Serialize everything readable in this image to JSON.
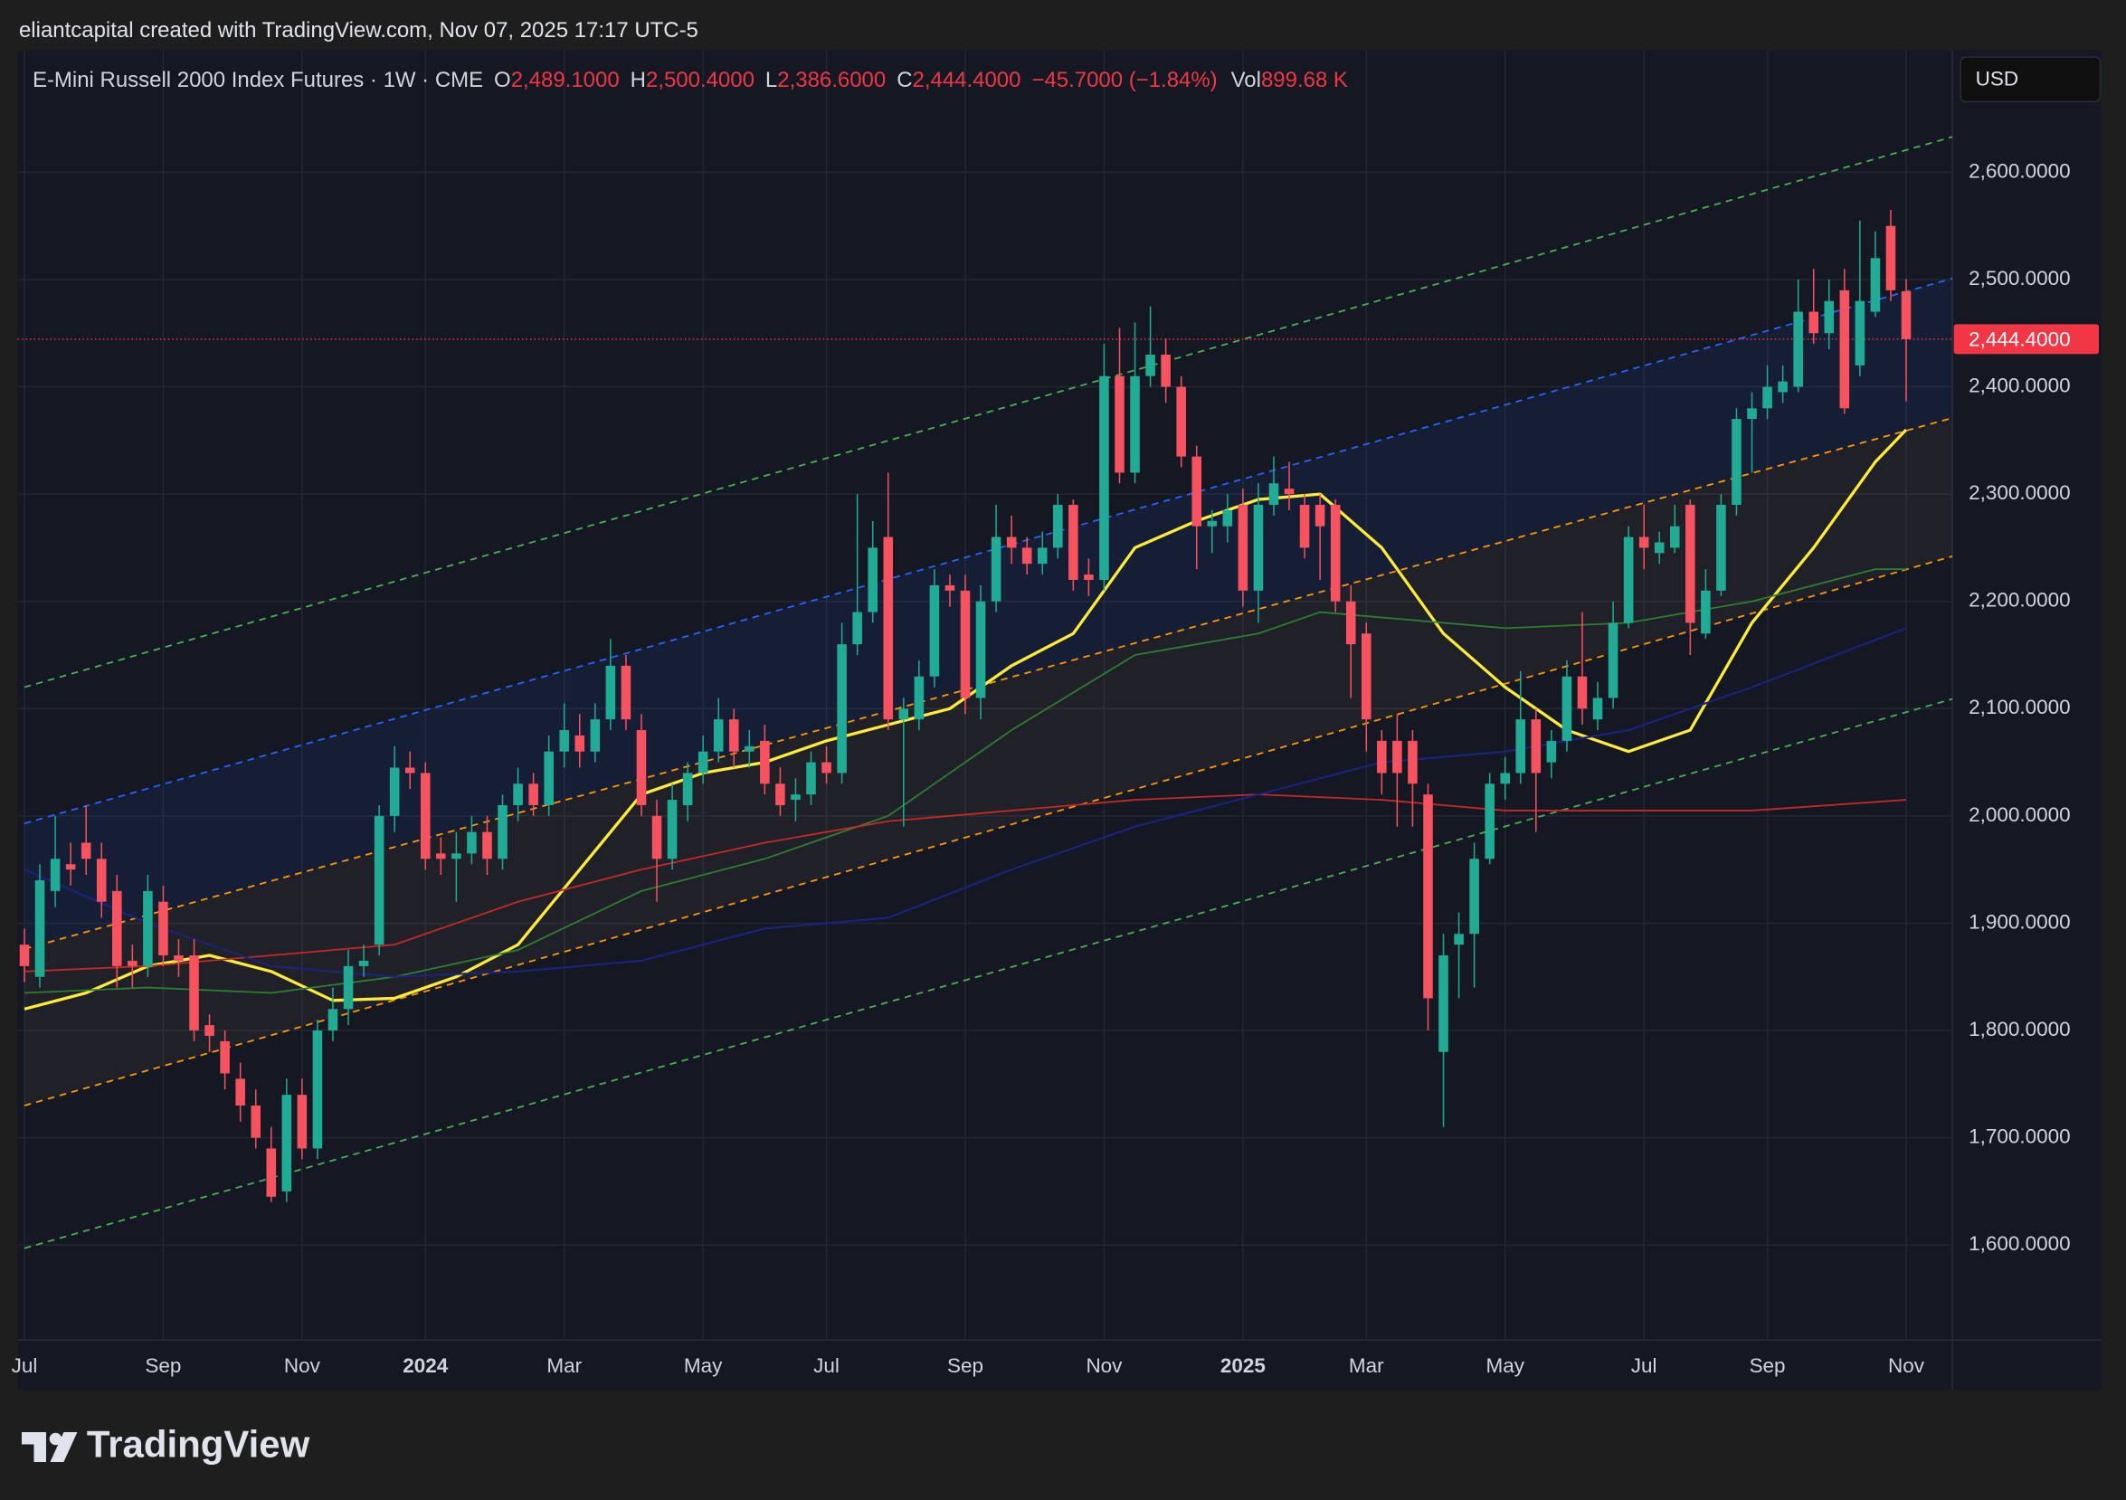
{
  "header": {
    "created": "eliantcapital created with TradingView.com, Nov 07, 2025 17:17 UTC-5"
  },
  "footer": {
    "brand": "TradingView"
  },
  "chart_data": {
    "type": "candlestick",
    "symbol": "E-Mini Russell 2000 Index Futures · 1W · CME",
    "ohlc_labels": [
      {
        "key": "O",
        "label": "2,489.1000"
      },
      {
        "key": "H",
        "label": "2,500.4000"
      },
      {
        "key": "L",
        "label": "2,386.6000"
      },
      {
        "key": "C",
        "label": "2,444.4000"
      }
    ],
    "change": "−45.7000 (−1.84%)",
    "volume": {
      "key": "Vol",
      "label": "899.68 K"
    },
    "currency": "USD",
    "last_price": {
      "value": 2444.4,
      "label": "2,444.4000",
      "color": "#f23645"
    },
    "up_color": "#22ab94",
    "down_color": "#f7525f",
    "grid": true,
    "xlim": [
      -0.44,
      125
    ],
    "ylim": [
      1511.5,
      2713.8
    ],
    "xticks": [
      {
        "value": 0,
        "label": "Jul"
      },
      {
        "value": 9,
        "label": "Sep"
      },
      {
        "value": 18,
        "label": "Nov"
      },
      {
        "value": 26,
        "label": "2024"
      },
      {
        "value": 35,
        "label": "Mar"
      },
      {
        "value": 44,
        "label": "May"
      },
      {
        "value": 52,
        "label": "Jul"
      },
      {
        "value": 61,
        "label": "Sep"
      },
      {
        "value": 70,
        "label": "Nov"
      },
      {
        "value": 79,
        "label": "2025"
      },
      {
        "value": 87,
        "label": "Mar"
      },
      {
        "value": 96,
        "label": "May"
      },
      {
        "value": 105,
        "label": "Jul"
      },
      {
        "value": 113,
        "label": "Sep"
      },
      {
        "value": 122,
        "label": "Nov"
      }
    ],
    "yticks": [
      {
        "value": 1600,
        "label": "1,600.0000"
      },
      {
        "value": 1700,
        "label": "1,700.0000"
      },
      {
        "value": 1800,
        "label": "1,800.0000"
      },
      {
        "value": 1900,
        "label": "1,900.0000"
      },
      {
        "value": 2000,
        "label": "2,000.0000"
      },
      {
        "value": 2100,
        "label": "2,100.0000"
      },
      {
        "value": 2200,
        "label": "2,200.0000"
      },
      {
        "value": 2300,
        "label": "2,300.0000"
      },
      {
        "value": 2400,
        "label": "2,400.0000"
      },
      {
        "value": 2500,
        "label": "2,500.0000"
      },
      {
        "value": 2600,
        "label": "2,600.0000"
      }
    ],
    "open": [
      1880,
      1850,
      1930,
      1955,
      1975,
      1960,
      1930,
      1865,
      1860,
      1920,
      1870,
      1870,
      1805,
      1790,
      1755,
      1730,
      1690,
      1650,
      1740,
      1690,
      1800,
      1820,
      1860,
      1880,
      2000,
      2045,
      2040,
      1965,
      1960,
      1965,
      1985,
      1960,
      2010,
      2030,
      2010,
      2060,
      2075,
      2060,
      2090,
      2140,
      2080,
      2000,
      1960,
      2010,
      2040,
      2060,
      2090,
      2060,
      2070,
      2030,
      2015,
      2020,
      2050,
      2040,
      2160,
      2190,
      2260,
      2090,
      2090,
      2130,
      2215,
      2210,
      2110,
      2200,
      2260,
      2250,
      2235,
      2250,
      2290,
      2225,
      2220,
      2410,
      2320,
      2410,
      2430,
      2400,
      2335,
      2270,
      2270,
      2290,
      2210,
      2290,
      2305,
      2290,
      2290,
      2290,
      2200,
      2170,
      2070,
      2070,
      2070,
      2020,
      1780,
      1880,
      1890,
      1960,
      2030,
      2040,
      2090,
      2050,
      2070,
      2130,
      2090,
      2110,
      2180,
      2260,
      2245,
      2250,
      2290,
      2170,
      2210,
      2290,
      2370,
      2380,
      2395,
      2400,
      2470,
      2450,
      2490,
      2420,
      2470,
      2550,
      2489.1
    ],
    "high": [
      1895,
      1955,
      2000,
      1975,
      2010,
      1975,
      1945,
      1880,
      1945,
      1935,
      1885,
      1885,
      1815,
      1800,
      1770,
      1745,
      1710,
      1755,
      1755,
      1810,
      1840,
      1875,
      1880,
      2010,
      2065,
      2060,
      2050,
      1980,
      1985,
      2000,
      2000,
      2020,
      2045,
      2040,
      2075,
      2105,
      2095,
      2105,
      2165,
      2150,
      2095,
      2015,
      2030,
      2050,
      2075,
      2110,
      2100,
      2080,
      2085,
      2045,
      2035,
      2060,
      2065,
      2180,
      2300,
      2275,
      2320,
      2110,
      2145,
      2230,
      2225,
      2225,
      2215,
      2290,
      2280,
      2260,
      2265,
      2300,
      2295,
      2240,
      2440,
      2455,
      2460,
      2475,
      2445,
      2410,
      2345,
      2285,
      2300,
      2305,
      2310,
      2335,
      2330,
      2300,
      2300,
      2295,
      2215,
      2180,
      2080,
      2095,
      2080,
      2030,
      1890,
      1910,
      1975,
      2040,
      2055,
      2135,
      2100,
      2080,
      2145,
      2190,
      2125,
      2200,
      2270,
      2290,
      2265,
      2290,
      2295,
      2230,
      2300,
      2380,
      2395,
      2420,
      2420,
      2500,
      2510,
      2500,
      2510,
      2555,
      2545,
      2565,
      2500.4
    ],
    "low": [
      1845,
      1840,
      1915,
      1935,
      1945,
      1905,
      1840,
      1840,
      1850,
      1860,
      1850,
      1790,
      1780,
      1745,
      1715,
      1690,
      1640,
      1640,
      1680,
      1680,
      1790,
      1805,
      1850,
      1870,
      1985,
      2025,
      1950,
      1945,
      1920,
      1955,
      1945,
      1950,
      1995,
      2000,
      2000,
      2045,
      2045,
      2050,
      2080,
      2080,
      2000,
      1920,
      1950,
      1995,
      2030,
      2050,
      2045,
      2045,
      2020,
      2000,
      1995,
      2010,
      2030,
      2030,
      2150,
      2180,
      2080,
      1990,
      2080,
      2120,
      2195,
      2095,
      2090,
      2190,
      2235,
      2225,
      2225,
      2240,
      2210,
      2205,
      2210,
      2310,
      2310,
      2400,
      2385,
      2325,
      2230,
      2245,
      2255,
      2195,
      2180,
      2280,
      2285,
      2240,
      2220,
      2190,
      2110,
      2060,
      2020,
      1990,
      1990,
      1800,
      1710,
      1830,
      1840,
      1955,
      2015,
      2030,
      1985,
      2035,
      2060,
      2085,
      2080,
      2100,
      2175,
      2230,
      2235,
      2245,
      2150,
      2165,
      2205,
      2280,
      2320,
      2370,
      2385,
      2395,
      2440,
      2435,
      2375,
      2410,
      2465,
      2480,
      2386.6
    ],
    "close": [
      1860,
      1940,
      1960,
      1950,
      1960,
      1920,
      1860,
      1860,
      1930,
      1870,
      1865,
      1800,
      1795,
      1760,
      1730,
      1700,
      1645,
      1740,
      1690,
      1800,
      1820,
      1860,
      1865,
      2000,
      2045,
      2040,
      1960,
      1960,
      1965,
      1985,
      1960,
      2010,
      2030,
      2010,
      2060,
      2080,
      2060,
      2090,
      2140,
      2090,
      2010,
      1960,
      2015,
      2040,
      2060,
      2090,
      2060,
      2065,
      2030,
      2010,
      2020,
      2050,
      2040,
      2160,
      2190,
      2250,
      2090,
      2100,
      2130,
      2215,
      2210,
      2110,
      2200,
      2260,
      2250,
      2235,
      2250,
      2290,
      2220,
      2220,
      2410,
      2320,
      2410,
      2430,
      2400,
      2335,
      2270,
      2275,
      2285,
      2210,
      2290,
      2310,
      2300,
      2250,
      2270,
      2200,
      2160,
      2090,
      2040,
      2040,
      2030,
      1830,
      1870,
      1890,
      1960,
      2030,
      2040,
      2090,
      2040,
      2070,
      2130,
      2100,
      2110,
      2180,
      2260,
      2250,
      2255,
      2270,
      2180,
      2210,
      2290,
      2370,
      2380,
      2400,
      2405,
      2470,
      2450,
      2480,
      2380,
      2480,
      2520,
      2490,
      2444.4
    ],
    "series": [
      {
        "color": "#ffeb3b",
        "width": 2.2,
        "x": [
          0,
          4,
          8,
          12,
          16,
          20,
          24,
          28,
          32,
          36,
          40,
          44,
          48,
          52,
          56,
          60,
          64,
          68,
          72,
          76,
          80,
          84,
          88,
          92,
          96,
          100,
          104,
          108,
          112,
          116,
          120,
          122
        ],
        "values": [
          1820,
          1835,
          1860,
          1870,
          1855,
          1828,
          1830,
          1850,
          1880,
          1950,
          2020,
          2040,
          2050,
          2070,
          2085,
          2100,
          2140,
          2170,
          2250,
          2275,
          2295,
          2300,
          2250,
          2170,
          2120,
          2080,
          2060,
          2080,
          2180,
          2250,
          2330,
          2360
        ]
      },
      {
        "color": "#2e7d32",
        "width": 1.2,
        "x": [
          0,
          8,
          16,
          24,
          32,
          40,
          48,
          56,
          64,
          72,
          80,
          84,
          88,
          96,
          104,
          112,
          120,
          122
        ],
        "values": [
          1835,
          1840,
          1835,
          1850,
          1875,
          1930,
          1960,
          2000,
          2080,
          2150,
          2170,
          2190,
          2185,
          2175,
          2180,
          2200,
          2230,
          2230
        ]
      },
      {
        "color": "#c62828",
        "width": 1.2,
        "x": [
          0,
          8,
          16,
          24,
          32,
          40,
          48,
          56,
          64,
          72,
          80,
          88,
          96,
          104,
          112,
          122
        ],
        "values": [
          1855,
          1860,
          1870,
          1880,
          1920,
          1950,
          1975,
          1995,
          2005,
          2015,
          2020,
          2015,
          2005,
          2005,
          2005,
          2015
        ]
      },
      {
        "color": "#1a237e",
        "width": 1.4,
        "x": [
          0,
          8,
          16,
          24,
          32,
          40,
          48,
          56,
          64,
          72,
          80,
          88,
          96,
          104,
          112,
          122
        ],
        "values": [
          1950,
          1900,
          1860,
          1850,
          1855,
          1865,
          1895,
          1905,
          1950,
          1990,
          2020,
          2050,
          2060,
          2080,
          2120,
          2175
        ]
      }
    ],
    "trend_lines": [
      {
        "color": "#4caf50",
        "x": [
          0,
          125
        ],
        "values": [
          2120,
          2633
        ]
      },
      {
        "color": "#2962ff",
        "x": [
          0,
          125
        ],
        "values": [
          1993,
          2501
        ],
        "fill": "rgba(41,98,255,0.08)"
      },
      {
        "color": "#ff9800",
        "x": [
          0,
          125
        ],
        "values": [
          1876,
          2371
        ],
        "fill": "rgba(160,130,100,0.09)"
      },
      {
        "color": "#ff9800",
        "x": [
          0,
          125
        ],
        "values": [
          1730,
          2242
        ]
      },
      {
        "color": "#4caf50",
        "x": [
          0,
          125
        ],
        "values": [
          1597,
          2109
        ]
      }
    ]
  }
}
